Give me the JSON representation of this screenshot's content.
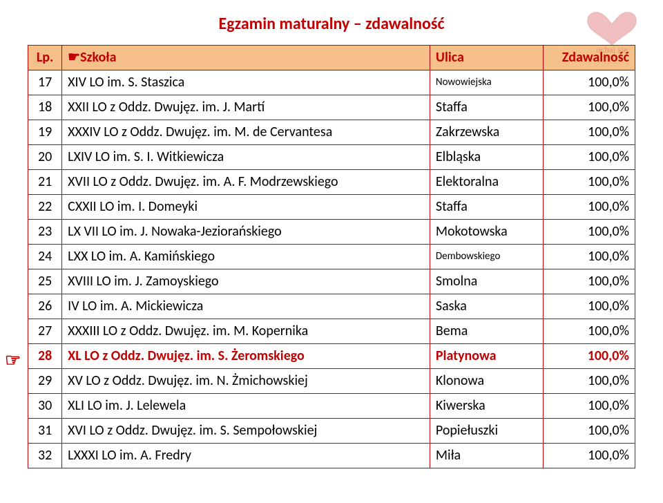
{
  "title": "Egzamin maturalny – zdawalność",
  "title_color": "#c00000",
  "header_bg": "#f6c08a",
  "header_color": "#c00000",
  "border_color": "#c00000",
  "highlight_text_color": "#c00000",
  "columns": {
    "lp": "Lp.",
    "szkola": "☛Szkoła",
    "ulica": "Ulica",
    "zdaw": "Zdawalność"
  },
  "hand_pointer": "☞",
  "rows": [
    {
      "lp": "17",
      "szkola": "XIV LO im. S. Staszica",
      "ulica": "Nowowiejska",
      "zdaw": "100,0%",
      "ulica_small": true
    },
    {
      "lp": "18",
      "szkola": "XXII LO z Oddz. Dwujęz. im. J. Martí",
      "ulica": "Staffa",
      "zdaw": "100,0%"
    },
    {
      "lp": "19",
      "szkola": "XXXIV LO z Oddz. Dwujęz. im. M. de Cervantesa",
      "ulica": "Zakrzewska",
      "zdaw": "100,0%"
    },
    {
      "lp": "20",
      "szkola": "LXIV LO im. S. I. Witkiewicza",
      "ulica": "Elbląska",
      "zdaw": "100,0%"
    },
    {
      "lp": "21",
      "szkola": "XVII LO z Oddz. Dwujęz. im. A. F. Modrzewskiego",
      "ulica": "Elektoralna",
      "zdaw": "100,0%"
    },
    {
      "lp": "22",
      "szkola": "CXXII LO im. I. Domeyki",
      "ulica": "Staffa",
      "zdaw": "100,0%"
    },
    {
      "lp": "23",
      "szkola": "LX VII LO  im. J. Nowaka-Jeziorańskiego",
      "ulica": "Mokotowska",
      "zdaw": "100,0%"
    },
    {
      "lp": "24",
      "szkola": "LXX LO im. A. Kamińskiego",
      "ulica": "Dembowskiego",
      "zdaw": "100,0%",
      "ulica_small": true
    },
    {
      "lp": "25",
      "szkola": "XVIII LO im. J. Zamoyskiego",
      "ulica": "Smolna",
      "zdaw": "100,0%"
    },
    {
      "lp": "26",
      "szkola": "IV LO im. A. Mickiewicza",
      "ulica": "Saska",
      "zdaw": "100,0%"
    },
    {
      "lp": "27",
      "szkola": "XXXIII LO z Oddz. Dwujęz. im. M. Kopernika",
      "ulica": "Bema",
      "zdaw": "100,0%"
    },
    {
      "lp": "28",
      "szkola": "XL LO z Oddz. Dwujęz. im. S. Żeromskiego",
      "ulica": "Platynowa",
      "zdaw": "100,0%",
      "highlight": true,
      "hand": true
    },
    {
      "lp": "29",
      "szkola": "XV LO z Oddz. Dwujęz. im. N. Żmichowskiej",
      "ulica": "Klonowa",
      "zdaw": "100,0%"
    },
    {
      "lp": "30",
      "szkola": "XLI LO im. J. Lelewela",
      "ulica": "Kiwerska",
      "zdaw": "100,0%"
    },
    {
      "lp": "31",
      "szkola": "XVI LO z Oddz. Dwujęz. im. S. Sempołowskiej",
      "ulica": "Popiełuszki",
      "zdaw": "100,0%"
    },
    {
      "lp": "32",
      "szkola": "LXXXI LO im. A. Fredry",
      "ulica": "Miła",
      "zdaw": "100,0%"
    }
  ],
  "watermark": {
    "heart_color": "#d94a4a",
    "stroke_color": "#c04040",
    "text": "ochaj się"
  }
}
